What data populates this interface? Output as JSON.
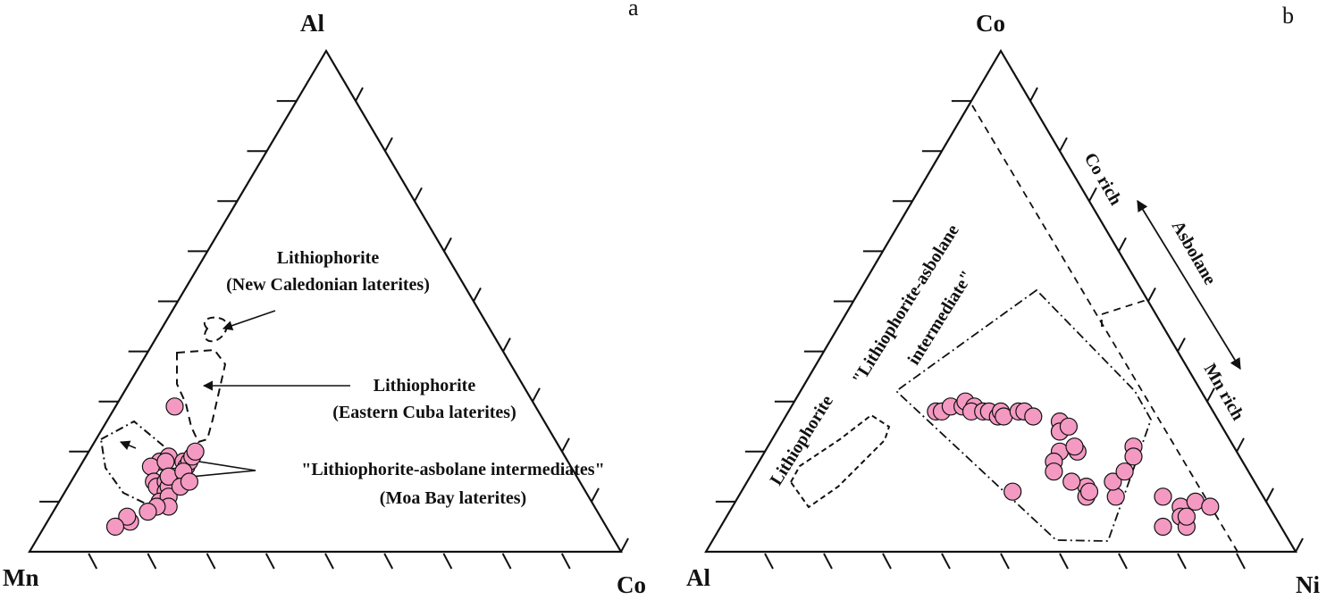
{
  "chart_data": [
    {
      "type": "scatter",
      "subtype": "ternary",
      "panel_label": "a",
      "vertices": {
        "top": "Al",
        "left": "Mn",
        "right": "Co"
      },
      "tick_divisions": 10,
      "point_color": "#f49ac2",
      "points_percent_Al_Mn_Co": [
        [
          29,
          61,
          10
        ],
        [
          18,
          69,
          13
        ],
        [
          17,
          71,
          12
        ],
        [
          19,
          67,
          14
        ],
        [
          18,
          68,
          14
        ],
        [
          18,
          65,
          17
        ],
        [
          14,
          72,
          14
        ],
        [
          13,
          72,
          15
        ],
        [
          14,
          70,
          16
        ],
        [
          15,
          68,
          17
        ],
        [
          12,
          71,
          17
        ],
        [
          13,
          70,
          17
        ],
        [
          10,
          73,
          17
        ],
        [
          11,
          71,
          18
        ],
        [
          9,
          72,
          19
        ],
        [
          9,
          74,
          17
        ],
        [
          8,
          76,
          16
        ],
        [
          6,
          80,
          14
        ],
        [
          7,
          80,
          13
        ],
        [
          5,
          83,
          12
        ],
        [
          15,
          69,
          16
        ],
        [
          17,
          65,
          18
        ],
        [
          18,
          64,
          18
        ],
        [
          19,
          63,
          18
        ],
        [
          20,
          62,
          18
        ],
        [
          15,
          69,
          16
        ],
        [
          16,
          66,
          18
        ],
        [
          13,
          68,
          19
        ],
        [
          14,
          66,
          20
        ]
      ],
      "fields": [
        {
          "name": "Lithiophorite",
          "caption": "(New Caledonian laterites)",
          "outline": "dashed"
        },
        {
          "name": "Lithiophorite",
          "caption": "(Eastern Cuba laterites)",
          "outline": "dashed"
        },
        {
          "name": "\"Lithiophorite-asbolane intermediates\"",
          "caption": "(Moa Bay laterites)",
          "outline": "dash-dot"
        }
      ]
    },
    {
      "type": "scatter",
      "subtype": "ternary",
      "panel_label": "b",
      "vertices": {
        "top": "Co",
        "left": "Al",
        "right": "Ni"
      },
      "tick_divisions": 10,
      "point_color": "#f49ac2",
      "points_percent_Co_Al_Ni": [
        [
          28,
          47,
          25
        ],
        [
          28,
          46,
          26
        ],
        [
          29,
          44,
          27
        ],
        [
          29,
          42,
          29
        ],
        [
          30,
          41,
          29
        ],
        [
          29,
          40,
          31
        ],
        [
          28,
          41,
          31
        ],
        [
          28,
          39,
          33
        ],
        [
          28,
          38,
          34
        ],
        [
          27,
          37,
          36
        ],
        [
          28,
          36,
          36
        ],
        [
          27,
          36,
          37
        ],
        [
          28,
          33,
          39
        ],
        [
          28,
          32,
          40
        ],
        [
          27,
          31,
          42
        ],
        [
          24,
          28,
          48
        ],
        [
          26,
          27,
          47
        ],
        [
          20,
          30,
          50
        ],
        [
          20,
          27,
          53
        ],
        [
          21,
          27,
          52
        ],
        [
          24,
          28,
          48
        ],
        [
          25,
          26,
          49
        ],
        [
          18,
          32,
          50
        ],
        [
          16,
          33,
          51
        ],
        [
          13,
          29,
          58
        ],
        [
          14,
          31,
          55
        ],
        [
          11,
          30,
          59
        ],
        [
          12,
          29,
          59
        ],
        [
          11,
          25,
          64
        ],
        [
          14,
          24,
          62
        ],
        [
          16,
          21,
          63
        ],
        [
          21,
          17,
          62
        ],
        [
          19,
          18,
          63
        ],
        [
          11,
          17,
          72
        ],
        [
          9,
          15,
          76
        ],
        [
          7,
          16,
          77
        ],
        [
          5,
          16,
          79
        ],
        [
          7,
          15,
          78
        ],
        [
          5,
          20,
          75
        ],
        [
          10,
          12,
          78
        ],
        [
          9,
          10,
          81
        ],
        [
          12,
          42,
          46
        ]
      ],
      "field_labels": [
        "Lithiophorite",
        "\"Lithiophorite-asbolane",
        "intermediate\""
      ],
      "side_labels": [
        "Co rich",
        "Asbolane",
        "Mn rich"
      ]
    }
  ],
  "panel_a": {
    "label": "a",
    "vertex_top": "Al",
    "vertex_left": "Mn",
    "vertex_right": "Co",
    "ann1_line1": "Lithiophorite",
    "ann1_line2": "(New Caledonian laterites)",
    "ann2_line1": "Lithiophorite",
    "ann2_line2": "(Eastern Cuba laterites)",
    "ann3_line1": "\"Lithiophorite-asbolane intermediates\"",
    "ann3_line2": "(Moa Bay laterites)"
  },
  "panel_b": {
    "label": "b",
    "vertex_top": "Co",
    "vertex_left": "Al",
    "vertex_right": "Ni",
    "field_line1": "\"Lithiophorite-asbolane",
    "field_line2": "intermediate\"",
    "field_lith": "Lithiophorite",
    "co_rich": "Co rich",
    "asbolane": "Asbolane",
    "mn_rich": "Mn rich"
  }
}
